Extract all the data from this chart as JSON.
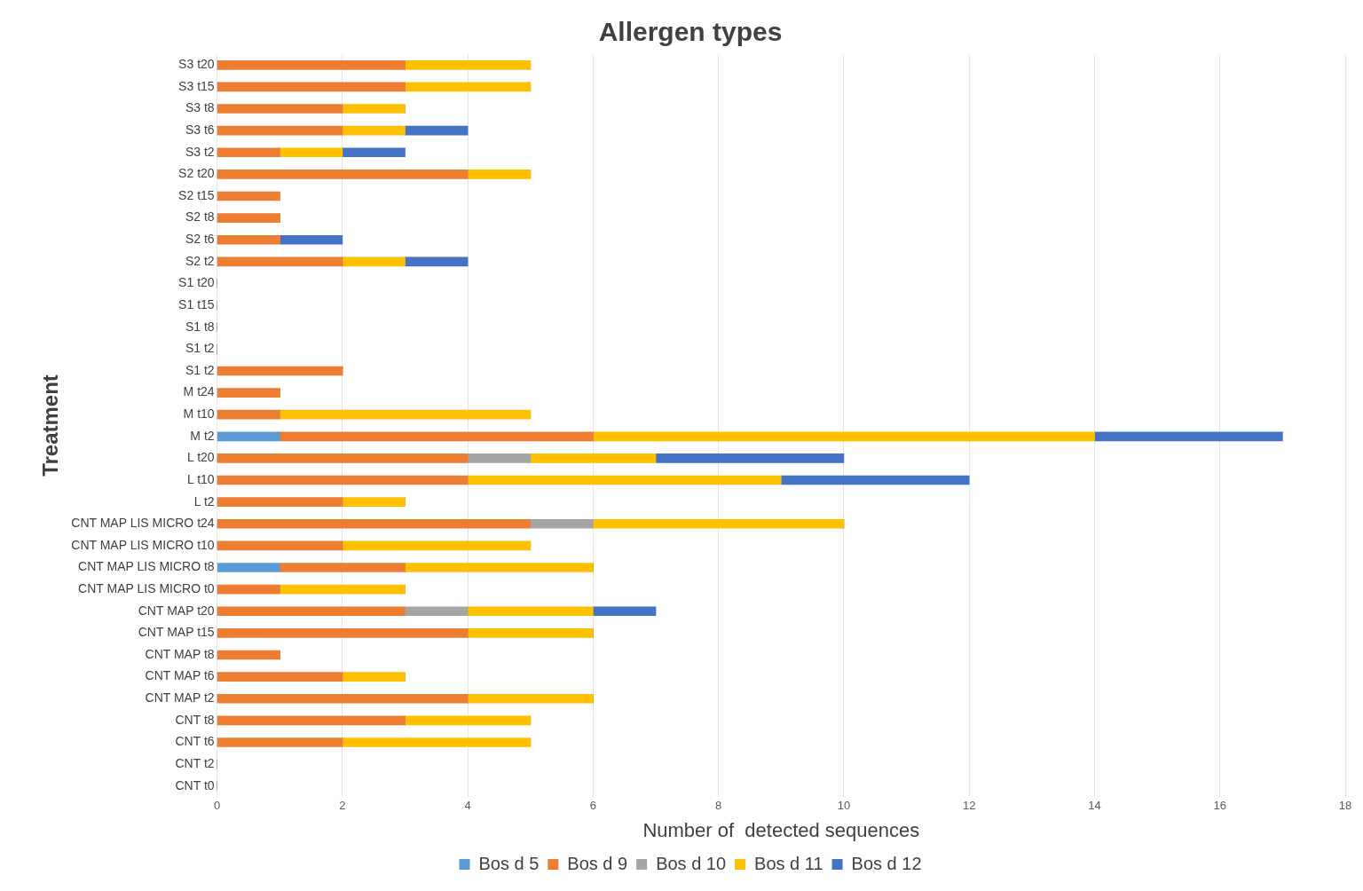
{
  "chart_data": {
    "type": "bar",
    "orientation": "horizontal",
    "stacked": true,
    "title": "Allergen types",
    "xlabel": "Number of  detected sequences",
    "ylabel": "Treatment",
    "categories": [
      "S3 t20",
      "S3 t15",
      "S3 t8",
      "S3 t6",
      "S3 t2",
      "S2 t20",
      "S2 t15",
      "S2 t8",
      "S2 t6",
      "S2 t2",
      "S1 t20",
      "S1 t15",
      "S1 t8",
      "S1 t2",
      "S1 t2",
      "M t24",
      "M t10",
      "M t2",
      "L t20",
      "L t10",
      "L t2",
      "CNT MAP LIS MICRO t24",
      "CNT MAP LIS MICRO t10",
      "CNT MAP LIS MICRO t8",
      "CNT MAP LIS MICRO t0",
      "CNT MAP t20",
      "CNT MAP t15",
      "CNT MAP t8",
      "CNT MAP t6",
      "CNT MAP t2",
      "CNT t8",
      "CNT t6",
      "CNT t2",
      "CNT t0"
    ],
    "series": [
      {
        "name": "Bos d 5",
        "color": "#5b9bd5",
        "values": [
          0,
          0,
          0,
          0,
          0,
          0,
          0,
          0,
          0,
          0,
          0,
          0,
          0,
          0,
          0,
          0,
          0,
          1,
          0,
          0,
          0,
          0,
          0,
          1,
          0,
          0,
          0,
          0,
          0,
          0,
          0,
          0,
          0,
          0
        ]
      },
      {
        "name": "Bos d 9",
        "color": "#ed7d31",
        "values": [
          3,
          3,
          2,
          2,
          1,
          4,
          1,
          1,
          1,
          2,
          0,
          0,
          0,
          0,
          2,
          1,
          1,
          5,
          4,
          4,
          2,
          5,
          2,
          2,
          1,
          3,
          4,
          1,
          2,
          4,
          3,
          2,
          0,
          0
        ]
      },
      {
        "name": "Bos d 10",
        "color": "#a5a5a5",
        "values": [
          0,
          0,
          0,
          0,
          0,
          0,
          0,
          0,
          0,
          0,
          0,
          0,
          0,
          0,
          0,
          0,
          0,
          0,
          1,
          0,
          0,
          1,
          0,
          0,
          0,
          1,
          0,
          0,
          0,
          0,
          0,
          0,
          0,
          0
        ]
      },
      {
        "name": "Bos d 11",
        "color": "#ffc000",
        "values": [
          2,
          2,
          1,
          1,
          1,
          1,
          0,
          0,
          0,
          1,
          0,
          0,
          0,
          0,
          0,
          0,
          4,
          8,
          2,
          5,
          1,
          4,
          3,
          3,
          2,
          2,
          2,
          0,
          1,
          2,
          2,
          3,
          0,
          0
        ]
      },
      {
        "name": "Bos d 12",
        "color": "#4472c4",
        "values": [
          0,
          0,
          0,
          1,
          1,
          0,
          0,
          0,
          1,
          1,
          0,
          0,
          0,
          0,
          0,
          0,
          0,
          3,
          3,
          3,
          0,
          0,
          0,
          0,
          0,
          1,
          0,
          0,
          0,
          0,
          0,
          0,
          0,
          0
        ]
      }
    ],
    "xlim": [
      0,
      18
    ],
    "xticks": [
      0,
      2,
      4,
      6,
      8,
      10,
      12,
      14,
      16,
      18
    ],
    "grid": "x",
    "legend": "bottom"
  }
}
